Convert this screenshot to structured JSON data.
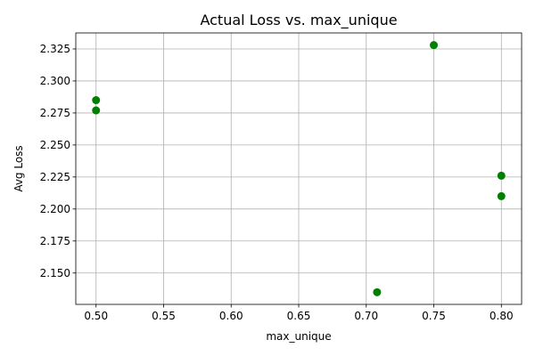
{
  "chart_data": {
    "type": "scatter",
    "title": "Actual Loss vs. max_unique",
    "xlabel": "max_unique",
    "ylabel": "Avg Loss",
    "x": [
      0.5,
      0.5,
      0.75,
      0.708,
      0.8,
      0.8
    ],
    "y": [
      2.285,
      2.277,
      2.328,
      2.135,
      2.226,
      2.21
    ],
    "xlim": [
      0.485,
      0.815
    ],
    "ylim": [
      2.1255,
      2.3375
    ],
    "xticks": [
      0.5,
      0.55,
      0.6,
      0.65,
      0.7,
      0.75,
      0.8
    ],
    "xtick_labels": [
      "0.50",
      "0.55",
      "0.60",
      "0.65",
      "0.70",
      "0.75",
      "0.80"
    ],
    "yticks": [
      2.15,
      2.175,
      2.2,
      2.225,
      2.25,
      2.275,
      2.3,
      2.325
    ],
    "ytick_labels": [
      "2.150",
      "2.175",
      "2.200",
      "2.225",
      "2.250",
      "2.275",
      "2.300",
      "2.325"
    ],
    "grid": true,
    "marker_color": "#008000",
    "grid_color": "#b0b0b0",
    "axis_color": "#000000"
  }
}
